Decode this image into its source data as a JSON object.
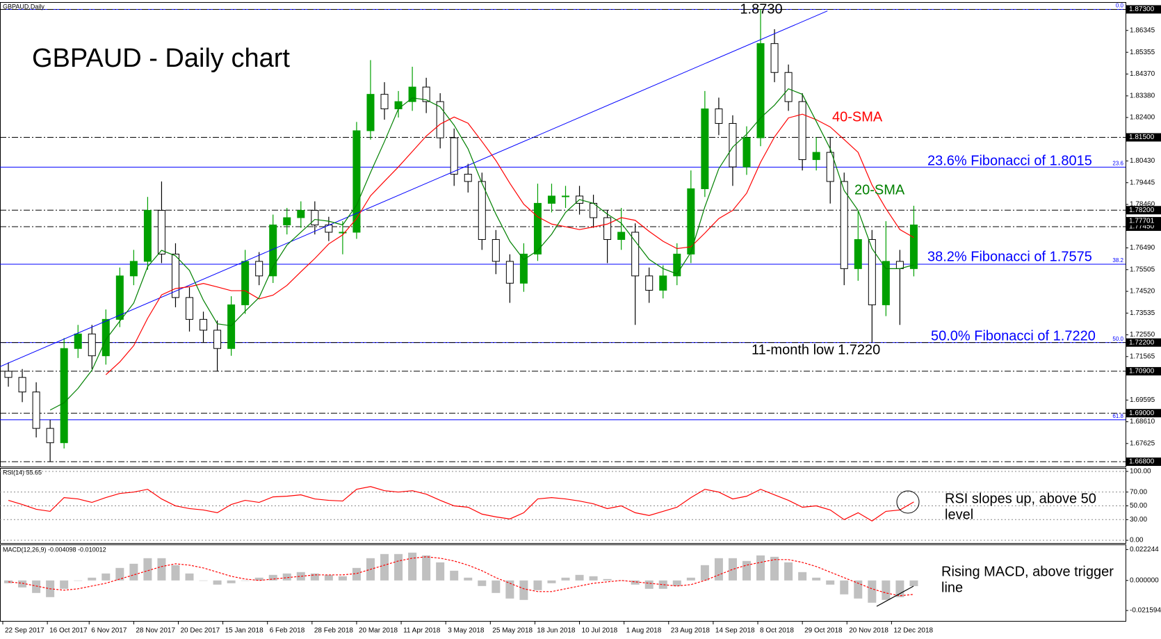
{
  "chart_data": [
    {
      "type": "candlestick",
      "title": "GBPAUD - Daily chart",
      "subtitle": "GBPAUD,Daily",
      "annotations": [
        "1.8730",
        "23.6% Fibonacci of 1.8015",
        "38.2% Fibonacci of 1.7575",
        "50.0% Fibonacci of 1.7220",
        "11-month low 1.7220"
      ],
      "up_color": "#00a000",
      "down_color": "#000000",
      "x": [
        2,
        7,
        12,
        17,
        22,
        27,
        32,
        37,
        42,
        47,
        52,
        57,
        62,
        67,
        72,
        77,
        82,
        87,
        92,
        97,
        102,
        107,
        112,
        117,
        122,
        127,
        132,
        137,
        142,
        147,
        152,
        157,
        162,
        167,
        172,
        177,
        182,
        187,
        192,
        197,
        202,
        207,
        212,
        217,
        222,
        227,
        232,
        237,
        242,
        247,
        252,
        257,
        262,
        267,
        272,
        277,
        282,
        287,
        292,
        297,
        302,
        307,
        312,
        317,
        322,
        327
      ],
      "xlim": [
        -1,
        403
      ],
      "xticks": [
        {
          "value": 0,
          "label": "22 Sep 2017"
        },
        {
          "value": 16,
          "label": "16 Oct 2017"
        },
        {
          "value": 31,
          "label": "6 Nov 2017"
        },
        {
          "value": 47,
          "label": "28 Nov 2017"
        },
        {
          "value": 63,
          "label": "20 Dec 2017"
        },
        {
          "value": 79,
          "label": "15 Jan 2018"
        },
        {
          "value": 95,
          "label": "6 Feb 2018"
        },
        {
          "value": 111,
          "label": "28 Feb 2018"
        },
        {
          "value": 127,
          "label": "20 Mar 2018"
        },
        {
          "value": 143,
          "label": "11 Apr 2018"
        },
        {
          "value": 159,
          "label": "3 May 2018"
        },
        {
          "value": 175,
          "label": "25 May 2018"
        },
        {
          "value": 191,
          "label": "18 Jun 2018"
        },
        {
          "value": 207,
          "label": "10 Jul 2018"
        },
        {
          "value": 223,
          "label": "1 Aug 2018"
        },
        {
          "value": 239,
          "label": "23 Aug 2018"
        },
        {
          "value": 255,
          "label": "14 Sep 2018"
        },
        {
          "value": 271,
          "label": "8 Oct 2018"
        },
        {
          "value": 287,
          "label": "29 Oct 2018"
        },
        {
          "value": 303,
          "label": "20 Nov 2018"
        },
        {
          "value": 319,
          "label": "12 Dec 2018"
        }
      ],
      "open": [
        1.709,
        1.7062,
        1.6996,
        1.6831,
        1.6766,
        1.7193,
        1.7259,
        1.716,
        1.7325,
        1.7522,
        1.7588,
        1.7819,
        1.7621,
        1.7424,
        1.7325,
        1.7276,
        1.7193,
        1.7391,
        1.7588,
        1.7522,
        1.7753,
        1.7786,
        1.7819,
        1.7753,
        1.772,
        1.772,
        1.818,
        1.8345,
        1.8279,
        1.8312,
        1.8378,
        1.8312,
        1.8148,
        1.7983,
        1.795,
        1.7687,
        1.7588,
        1.7489,
        1.7621,
        1.7851,
        1.7884,
        1.7884,
        1.7851,
        1.7786,
        1.7687,
        1.772,
        1.7522,
        1.7457,
        1.7522,
        1.7621,
        1.7917,
        1.8279,
        1.8213,
        1.8016,
        1.8148,
        1.8575,
        1.8444,
        1.8312,
        1.8049,
        1.8082,
        1.795,
        1.7555,
        1.7687,
        1.7391,
        1.7588,
        1.7555
      ],
      "high": [
        1.713,
        1.71,
        1.704,
        1.687,
        1.724,
        1.73,
        1.73,
        1.737,
        1.756,
        1.764,
        1.788,
        1.795,
        1.767,
        1.747,
        1.736,
        1.732,
        1.743,
        1.764,
        1.763,
        1.78,
        1.783,
        1.786,
        1.786,
        1.779,
        1.777,
        1.822,
        1.85,
        1.84,
        1.836,
        1.847,
        1.842,
        1.835,
        1.819,
        1.803,
        1.799,
        1.773,
        1.762,
        1.767,
        1.794,
        1.794,
        1.793,
        1.793,
        1.789,
        1.782,
        1.783,
        1.776,
        1.756,
        1.757,
        1.767,
        1.8,
        1.836,
        1.833,
        1.825,
        1.82,
        1.873,
        1.864,
        1.848,
        1.835,
        1.815,
        1.815,
        1.799,
        1.782,
        1.773,
        1.777,
        1.764,
        1.784
      ],
      "low": [
        1.702,
        1.695,
        1.679,
        1.668,
        1.674,
        1.715,
        1.71,
        1.712,
        1.729,
        1.748,
        1.755,
        1.758,
        1.738,
        1.727,
        1.722,
        1.709,
        1.716,
        1.735,
        1.748,
        1.749,
        1.771,
        1.774,
        1.771,
        1.768,
        1.762,
        1.769,
        1.814,
        1.823,
        1.824,
        1.827,
        1.826,
        1.81,
        1.793,
        1.79,
        1.764,
        1.753,
        1.74,
        1.745,
        1.759,
        1.781,
        1.783,
        1.78,
        1.774,
        1.758,
        1.764,
        1.73,
        1.74,
        1.742,
        1.748,
        1.758,
        1.788,
        1.816,
        1.793,
        1.798,
        1.811,
        1.84,
        1.827,
        1.8,
        1.8,
        1.785,
        1.748,
        1.75,
        1.722,
        1.734,
        1.73,
        1.752
      ],
      "close": [
        1.7062,
        1.6996,
        1.6831,
        1.6766,
        1.7193,
        1.7259,
        1.716,
        1.7325,
        1.7522,
        1.7588,
        1.7819,
        1.7621,
        1.7424,
        1.7325,
        1.7276,
        1.7193,
        1.7391,
        1.7588,
        1.7522,
        1.7753,
        1.7786,
        1.7819,
        1.7753,
        1.772,
        1.772,
        1.818,
        1.8345,
        1.8279,
        1.8312,
        1.8378,
        1.8312,
        1.8148,
        1.7983,
        1.795,
        1.7687,
        1.7588,
        1.7489,
        1.7621,
        1.7851,
        1.7884,
        1.7884,
        1.7851,
        1.7786,
        1.7687,
        1.772,
        1.7522,
        1.7457,
        1.7522,
        1.7621,
        1.7917,
        1.8279,
        1.8213,
        1.8016,
        1.8148,
        1.8575,
        1.8444,
        1.8312,
        1.8049,
        1.8082,
        1.795,
        1.7555,
        1.7687,
        1.7391,
        1.7588,
        1.7555,
        1.7753
      ],
      "series": [
        {
          "name": "40-SMA",
          "color": "#ff0000",
          "values": [
            null,
            null,
            null,
            null,
            null,
            null,
            null,
            1.7074,
            1.7132,
            1.7206,
            1.733,
            1.7436,
            1.7465,
            1.7473,
            1.7488,
            1.7472,
            1.7455,
            1.7455,
            1.7418,
            1.7435,
            1.7479,
            1.7541,
            1.7601,
            1.7667,
            1.7708,
            1.7782,
            1.7885,
            1.7951,
            1.8016,
            1.8086,
            1.8156,
            1.821,
            1.8242,
            1.8214,
            1.8131,
            1.8045,
            1.7942,
            1.7847,
            1.779,
            1.7757,
            1.7745,
            1.7732,
            1.7744,
            1.7757,
            1.7786,
            1.7774,
            1.7724,
            1.7679,
            1.7646,
            1.7654,
            1.7716,
            1.7782,
            1.7819,
            1.7897,
            1.8037,
            1.8152,
            1.8238,
            1.8255,
            1.823,
            1.8197,
            1.814,
            1.8082,
            1.7934,
            1.7827,
            1.7732,
            1.7696
          ]
        },
        {
          "name": "20-SMA",
          "color": "#008000",
          "values": [
            null,
            null,
            null,
            1.6914,
            1.6947,
            1.7012,
            1.7095,
            1.7234,
            1.7317,
            1.7399,
            1.7564,
            1.7638,
            1.7613,
            1.7547,
            1.7412,
            1.7305,
            1.7296,
            1.7362,
            1.7424,
            1.7564,
            1.7662,
            1.772,
            1.7778,
            1.777,
            1.7753,
            1.7843,
            1.7991,
            1.8131,
            1.8279,
            1.8329,
            1.832,
            1.8288,
            1.8205,
            1.8098,
            1.7942,
            1.7802,
            1.7679,
            1.7596,
            1.7637,
            1.7711,
            1.781,
            1.7868,
            1.7851,
            1.7802,
            1.7761,
            1.7679,
            1.7597,
            1.7555,
            1.7531,
            1.7629,
            1.7835,
            1.8008,
            1.8106,
            1.8164,
            1.8238,
            1.8296,
            1.837,
            1.8345,
            1.8222,
            1.8098,
            1.7909,
            1.7819,
            1.7646,
            1.7555,
            1.7555,
            1.7572
          ]
        }
      ],
      "trendline": {
        "color": "#0000ff",
        "x": [
          -1,
          296
        ],
        "values": [
          1.7111,
          1.8723
        ]
      },
      "ylim": [
        1.6658,
        1.8763
      ],
      "yticks": [
        1.86345,
        1.85355,
        {
          "value": 1.8437,
          "label": "1.84370"
        },
        {
          "value": 1.8338,
          "label": "1.83380"
        },
        {
          "value": 1.824,
          "label": "1.82400"
        },
        {
          "value": 1.8043,
          "label": "1.80430"
        },
        1.79445,
        {
          "value": 1.7846,
          "label": "1.78460"
        },
        {
          "value": 1.7649,
          "label": "1.76490"
        },
        1.75505,
        {
          "value": 1.7452,
          "label": "1.74520"
        },
        1.73535,
        {
          "value": 1.7255,
          "label": "1.72550"
        },
        1.71565,
        1.69595,
        {
          "value": 1.6861,
          "label": "1.68610"
        },
        1.67625
      ],
      "levels": [
        {
          "value": 1.873,
          "label": "1.87300"
        },
        {
          "value": 1.815,
          "label": "1.81500"
        },
        {
          "value": 1.782,
          "label": "1.78200"
        },
        {
          "value": 1.7745,
          "label": "1.77450"
        },
        {
          "value": 1.722,
          "label": "1.72200"
        },
        {
          "value": 1.709,
          "label": "1.70900"
        },
        {
          "value": 1.69,
          "label": "1.69000"
        },
        {
          "value": 1.668,
          "label": "1.66800"
        }
      ],
      "last_price": {
        "value": 1.77701,
        "label": "1.77701"
      },
      "fib_color": "#0000ff",
      "fib_levels": [
        {
          "value": 1.873,
          "label": "0.0"
        },
        {
          "value": 1.8015,
          "label": "23.6"
        },
        {
          "value": 1.7575,
          "label": "38.2"
        },
        {
          "value": 1.722,
          "label": "50.0"
        },
        {
          "value": 1.687,
          "label": "61.8"
        }
      ]
    },
    {
      "type": "line",
      "title": "RSI(14) 55.65",
      "annotations": [
        "RSI slopes up, above 50",
        "level"
      ],
      "grid": true,
      "ylim": [
        -4,
        105
      ],
      "yticks": [
        {
          "value": 100,
          "label": "100.00"
        },
        {
          "value": 70,
          "label": "70.00"
        },
        {
          "value": 50,
          "label": "50.00"
        },
        {
          "value": 30,
          "label": "30.00"
        },
        {
          "value": 0,
          "label": "0.00"
        }
      ],
      "series": [
        {
          "color": "#ff0000",
          "values": [
            58,
            52,
            45,
            42,
            62,
            60,
            55,
            62,
            68,
            70,
            74,
            60,
            50,
            46,
            44,
            40,
            52,
            58,
            55,
            63,
            64,
            66,
            60,
            58,
            57,
            74,
            78,
            72,
            70,
            72,
            67,
            58,
            50,
            48,
            38,
            34,
            31,
            40,
            60,
            62,
            60,
            57,
            53,
            46,
            50,
            40,
            36,
            42,
            48,
            62,
            74,
            70,
            60,
            64,
            74,
            66,
            58,
            48,
            50,
            44,
            30,
            40,
            28,
            42,
            44,
            55.65
          ]
        }
      ]
    },
    {
      "type": "bar",
      "title": "MACD(12,26,9) -0.004098 -0.010012",
      "annotations": [
        "Rising MACD, above trigger",
        "line"
      ],
      "ylim": [
        -0.0291,
        0.0259
      ],
      "yticks": [
        0.022244,
        {
          "value": 0,
          "label": "0.000000"
        },
        -0.021594
      ],
      "series": [
        {
          "render": "bar",
          "color": "#c0c0c0",
          "values": [
            -0.002,
            -0.005,
            -0.009,
            -0.012,
            -0.006,
            0.0,
            0.002,
            0.005,
            0.009,
            0.012,
            0.016,
            0.016,
            0.011,
            0.005,
            0.0,
            -0.003,
            -0.002,
            0.0,
            0.002,
            0.004,
            0.005,
            0.006,
            0.005,
            0.004,
            0.003,
            0.009,
            0.016,
            0.019,
            0.019,
            0.02,
            0.018,
            0.013,
            0.007,
            0.002,
            -0.004,
            -0.009,
            -0.013,
            -0.014,
            -0.007,
            -0.002,
            0.002,
            0.004,
            0.003,
            0.001,
            0.0,
            -0.003,
            -0.006,
            -0.006,
            -0.004,
            0.002,
            0.011,
            0.016,
            0.016,
            0.014,
            0.018,
            0.017,
            0.013,
            0.006,
            0.002,
            -0.003,
            -0.01,
            -0.013,
            -0.016,
            -0.014,
            -0.012,
            -0.004098
          ]
        },
        {
          "render": "line",
          "dash": true,
          "color": "#ff0000",
          "values": [
            -0.001,
            -0.002,
            -0.004,
            -0.006,
            -0.007,
            -0.006,
            -0.004,
            -0.002,
            0.001,
            0.004,
            0.007,
            0.01,
            0.012,
            0.011,
            0.009,
            0.006,
            0.003,
            0.001,
            0.0,
            0.001,
            0.002,
            0.003,
            0.004,
            0.004,
            0.004,
            0.005,
            0.008,
            0.011,
            0.014,
            0.016,
            0.017,
            0.016,
            0.014,
            0.011,
            0.007,
            0.002,
            -0.002,
            -0.006,
            -0.008,
            -0.008,
            -0.006,
            -0.004,
            -0.002,
            -0.001,
            0.0,
            -0.001,
            -0.002,
            -0.003,
            -0.004,
            -0.003,
            0.0,
            0.004,
            0.008,
            0.011,
            0.013,
            0.015,
            0.015,
            0.013,
            0.01,
            0.006,
            0.002,
            -0.002,
            -0.006,
            -0.009,
            -0.011,
            -0.010012
          ]
        }
      ]
    }
  ]
}
